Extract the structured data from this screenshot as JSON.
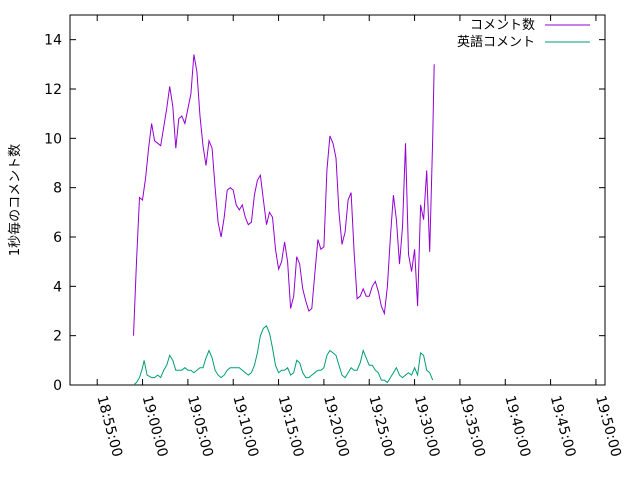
{
  "chart_data": {
    "type": "line",
    "title": "",
    "xlabel": "",
    "ylabel": "1秒毎のコメント数",
    "ylim": [
      0,
      15
    ],
    "yticks": [
      0,
      2,
      4,
      6,
      8,
      10,
      12,
      14
    ],
    "xlim": [
      "18:52:00",
      "19:51:00"
    ],
    "xticks": [
      "18:55:00",
      "19:00:00",
      "19:05:00",
      "19:10:00",
      "19:15:00",
      "19:20:00",
      "19:25:00",
      "19:30:00",
      "19:35:00",
      "19:40:00",
      "19:45:00",
      "19:50:00"
    ],
    "grid": false,
    "legend_position": "top-right",
    "series": [
      {
        "name": "コメント数",
        "color": "#9400d3",
        "points": [
          [
            "18:59:00",
            2.0
          ],
          [
            "18:59:20",
            5.0
          ],
          [
            "18:59:40",
            7.6
          ],
          [
            "19:00:00",
            7.5
          ],
          [
            "19:00:20",
            8.4
          ],
          [
            "19:00:40",
            9.6
          ],
          [
            "19:01:00",
            10.6
          ],
          [
            "19:01:20",
            9.9
          ],
          [
            "19:02:00",
            9.7
          ],
          [
            "19:02:40",
            11.2
          ],
          [
            "19:03:00",
            12.1
          ],
          [
            "19:03:20",
            11.3
          ],
          [
            "19:03:40",
            9.6
          ],
          [
            "19:04:00",
            10.8
          ],
          [
            "19:04:20",
            10.9
          ],
          [
            "19:04:40",
            10.6
          ],
          [
            "19:05:20",
            11.8
          ],
          [
            "19:05:40",
            13.4
          ],
          [
            "19:06:00",
            12.7
          ],
          [
            "19:06:20",
            10.9
          ],
          [
            "19:06:40",
            9.7
          ],
          [
            "19:07:00",
            8.9
          ],
          [
            "19:07:20",
            9.9
          ],
          [
            "19:07:40",
            9.6
          ],
          [
            "19:08:00",
            8.0
          ],
          [
            "19:08:20",
            6.6
          ],
          [
            "19:08:40",
            6.0
          ],
          [
            "19:09:00",
            6.8
          ],
          [
            "19:09:20",
            7.9
          ],
          [
            "19:09:40",
            8.0
          ],
          [
            "19:10:00",
            7.9
          ],
          [
            "19:10:20",
            7.3
          ],
          [
            "19:10:40",
            7.1
          ],
          [
            "19:11:00",
            7.3
          ],
          [
            "19:11:20",
            6.8
          ],
          [
            "19:11:40",
            6.5
          ],
          [
            "19:12:00",
            6.6
          ],
          [
            "19:12:20",
            7.7
          ],
          [
            "19:12:40",
            8.3
          ],
          [
            "19:13:00",
            8.5
          ],
          [
            "19:13:20",
            7.5
          ],
          [
            "19:13:40",
            6.5
          ],
          [
            "19:14:00",
            7.0
          ],
          [
            "19:14:20",
            6.8
          ],
          [
            "19:14:40",
            5.5
          ],
          [
            "19:15:00",
            4.7
          ],
          [
            "19:15:20",
            5.0
          ],
          [
            "19:15:40",
            5.8
          ],
          [
            "19:16:00",
            5.0
          ],
          [
            "19:16:20",
            3.1
          ],
          [
            "19:16:40",
            3.6
          ],
          [
            "19:17:00",
            5.2
          ],
          [
            "19:17:20",
            4.9
          ],
          [
            "19:17:40",
            3.9
          ],
          [
            "19:18:00",
            3.4
          ],
          [
            "19:18:20",
            3.0
          ],
          [
            "19:18:40",
            3.1
          ],
          [
            "19:19:00",
            4.5
          ],
          [
            "19:19:20",
            5.9
          ],
          [
            "19:19:40",
            5.5
          ],
          [
            "19:20:00",
            5.6
          ],
          [
            "19:20:20",
            8.7
          ],
          [
            "19:20:40",
            10.1
          ],
          [
            "19:21:00",
            9.8
          ],
          [
            "19:21:20",
            9.2
          ],
          [
            "19:21:40",
            7.0
          ],
          [
            "19:22:00",
            5.7
          ],
          [
            "19:22:20",
            6.2
          ],
          [
            "19:22:40",
            7.5
          ],
          [
            "19:23:00",
            7.8
          ],
          [
            "19:23:20",
            5.4
          ],
          [
            "19:23:40",
            3.5
          ],
          [
            "19:24:00",
            3.6
          ],
          [
            "19:24:20",
            3.9
          ],
          [
            "19:24:40",
            3.6
          ],
          [
            "19:25:00",
            3.6
          ],
          [
            "19:25:20",
            4.0
          ],
          [
            "19:25:40",
            4.2
          ],
          [
            "19:26:00",
            3.8
          ],
          [
            "19:26:20",
            3.2
          ],
          [
            "19:26:40",
            2.9
          ],
          [
            "19:27:00",
            4.0
          ],
          [
            "19:27:20",
            6.0
          ],
          [
            "19:27:40",
            7.7
          ],
          [
            "19:28:00",
            6.7
          ],
          [
            "19:28:20",
            4.9
          ],
          [
            "19:28:40",
            6.4
          ],
          [
            "19:29:00",
            9.8
          ],
          [
            "19:29:20",
            5.3
          ],
          [
            "19:29:40",
            4.6
          ],
          [
            "19:30:00",
            5.5
          ],
          [
            "19:30:20",
            3.2
          ],
          [
            "19:30:40",
            7.3
          ],
          [
            "19:31:00",
            6.7
          ],
          [
            "19:31:20",
            8.7
          ],
          [
            "19:31:40",
            5.4
          ],
          [
            "19:32:00",
            10.0
          ],
          [
            "19:32:10",
            13.0
          ]
        ]
      },
      {
        "name": "英語コメント",
        "color": "#009e73",
        "points": [
          [
            "18:59:00",
            0.0
          ],
          [
            "18:59:20",
            0.1
          ],
          [
            "18:59:40",
            0.3
          ],
          [
            "19:00:00",
            0.7
          ],
          [
            "19:00:10",
            1.0
          ],
          [
            "19:00:30",
            0.4
          ],
          [
            "19:01:00",
            0.3
          ],
          [
            "19:01:20",
            0.3
          ],
          [
            "19:01:40",
            0.4
          ],
          [
            "19:02:00",
            0.3
          ],
          [
            "19:02:20",
            0.6
          ],
          [
            "19:02:40",
            0.8
          ],
          [
            "19:03:00",
            1.2
          ],
          [
            "19:03:20",
            1.0
          ],
          [
            "19:03:40",
            0.6
          ],
          [
            "19:04:00",
            0.6
          ],
          [
            "19:04:20",
            0.6
          ],
          [
            "19:04:40",
            0.7
          ],
          [
            "19:05:00",
            0.6
          ],
          [
            "19:05:20",
            0.6
          ],
          [
            "19:05:40",
            0.5
          ],
          [
            "19:06:00",
            0.6
          ],
          [
            "19:06:20",
            0.7
          ],
          [
            "19:06:40",
            0.7
          ],
          [
            "19:07:00",
            1.1
          ],
          [
            "19:07:20",
            1.4
          ],
          [
            "19:07:40",
            1.1
          ],
          [
            "19:08:00",
            0.6
          ],
          [
            "19:08:20",
            0.4
          ],
          [
            "19:08:40",
            0.3
          ],
          [
            "19:09:00",
            0.4
          ],
          [
            "19:09:20",
            0.6
          ],
          [
            "19:09:40",
            0.7
          ],
          [
            "19:10:00",
            0.7
          ],
          [
            "19:10:20",
            0.7
          ],
          [
            "19:10:40",
            0.7
          ],
          [
            "19:11:00",
            0.6
          ],
          [
            "19:11:20",
            0.5
          ],
          [
            "19:11:40",
            0.4
          ],
          [
            "19:12:00",
            0.5
          ],
          [
            "19:12:20",
            0.8
          ],
          [
            "19:12:40",
            1.3
          ],
          [
            "19:13:00",
            2.0
          ],
          [
            "19:13:20",
            2.3
          ],
          [
            "19:13:40",
            2.4
          ],
          [
            "19:14:00",
            2.1
          ],
          [
            "19:14:20",
            1.5
          ],
          [
            "19:14:40",
            0.8
          ],
          [
            "19:15:00",
            0.5
          ],
          [
            "19:15:20",
            0.6
          ],
          [
            "19:15:40",
            0.6
          ],
          [
            "19:16:00",
            0.7
          ],
          [
            "19:16:20",
            0.4
          ],
          [
            "19:16:40",
            0.5
          ],
          [
            "19:17:00",
            1.0
          ],
          [
            "19:17:20",
            0.9
          ],
          [
            "19:17:40",
            0.5
          ],
          [
            "19:18:00",
            0.3
          ],
          [
            "19:18:20",
            0.3
          ],
          [
            "19:18:40",
            0.4
          ],
          [
            "19:19:00",
            0.5
          ],
          [
            "19:19:20",
            0.6
          ],
          [
            "19:19:40",
            0.6
          ],
          [
            "19:20:00",
            0.7
          ],
          [
            "19:20:20",
            1.2
          ],
          [
            "19:20:40",
            1.4
          ],
          [
            "19:21:00",
            1.3
          ],
          [
            "19:21:20",
            1.2
          ],
          [
            "19:21:40",
            0.8
          ],
          [
            "19:22:00",
            0.4
          ],
          [
            "19:22:20",
            0.3
          ],
          [
            "19:22:40",
            0.5
          ],
          [
            "19:23:00",
            0.7
          ],
          [
            "19:23:20",
            0.6
          ],
          [
            "19:23:40",
            0.6
          ],
          [
            "19:24:00",
            0.9
          ],
          [
            "19:24:20",
            1.4
          ],
          [
            "19:24:40",
            1.1
          ],
          [
            "19:25:00",
            0.8
          ],
          [
            "19:25:20",
            0.8
          ],
          [
            "19:25:40",
            0.6
          ],
          [
            "19:26:00",
            0.5
          ],
          [
            "19:26:20",
            0.2
          ],
          [
            "19:26:40",
            0.2
          ],
          [
            "19:27:00",
            0.1
          ],
          [
            "19:27:20",
            0.3
          ],
          [
            "19:27:40",
            0.5
          ],
          [
            "19:28:00",
            0.7
          ],
          [
            "19:28:20",
            0.4
          ],
          [
            "19:28:40",
            0.3
          ],
          [
            "19:29:00",
            0.4
          ],
          [
            "19:29:20",
            0.5
          ],
          [
            "19:29:40",
            0.4
          ],
          [
            "19:30:00",
            0.7
          ],
          [
            "19:30:20",
            0.4
          ],
          [
            "19:30:40",
            1.3
          ],
          [
            "19:31:00",
            1.2
          ],
          [
            "19:31:20",
            0.6
          ],
          [
            "19:31:40",
            0.5
          ],
          [
            "19:32:00",
            0.2
          ]
        ]
      }
    ]
  }
}
